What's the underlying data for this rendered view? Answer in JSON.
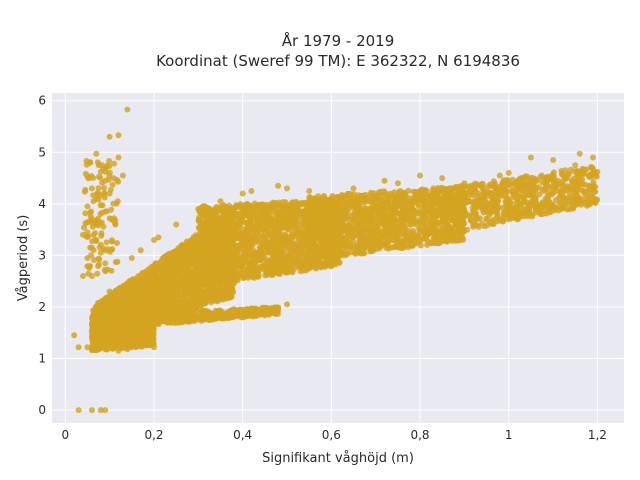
{
  "chart_data": {
    "type": "scatter",
    "title_line1": "År 1979 - 2019",
    "title_line2": "Koordinat (Sweref 99 TM): E 362322, N 6194836",
    "xlabel": "Signifikant våghöjd (m)",
    "ylabel": "Vågperiod (s)",
    "xlim": [
      -0.03,
      1.26
    ],
    "ylim": [
      -0.25,
      6.15
    ],
    "x_ticks": [
      0,
      0.2,
      0.4,
      0.6,
      0.8,
      1,
      1.2
    ],
    "x_tick_labels": [
      "0",
      "0,2",
      "0,4",
      "0,6",
      "0,8",
      "1",
      "1,2"
    ],
    "y_ticks": [
      0,
      1,
      2,
      3,
      4,
      5,
      6
    ],
    "y_tick_labels": [
      "0",
      "1",
      "2",
      "3",
      "4",
      "5",
      "6"
    ],
    "grid": true,
    "legend": "none",
    "marker_color": "#d4a421",
    "background_color": "#e9e9f2",
    "points": [
      [
        0.03,
        0.0
      ],
      [
        0.06,
        0.0
      ],
      [
        0.08,
        0.0
      ],
      [
        0.09,
        0.0
      ],
      [
        0.14,
        5.83
      ],
      [
        0.12,
        5.33
      ],
      [
        0.1,
        5.3
      ],
      [
        0.07,
        4.97
      ],
      [
        0.12,
        4.9
      ],
      [
        0.11,
        4.78
      ],
      [
        0.08,
        4.62
      ],
      [
        0.13,
        4.55
      ],
      [
        0.09,
        4.45
      ],
      [
        0.06,
        4.3
      ],
      [
        0.1,
        4.2
      ],
      [
        0.07,
        4.1
      ],
      [
        0.05,
        3.95
      ],
      [
        0.09,
        3.85
      ],
      [
        0.06,
        3.7
      ],
      [
        0.11,
        3.72
      ],
      [
        0.04,
        3.4
      ],
      [
        0.07,
        3.3
      ],
      [
        0.06,
        3.15
      ],
      [
        0.08,
        3.05
      ],
      [
        0.05,
        2.95
      ],
      [
        0.09,
        2.85
      ],
      [
        0.06,
        2.6
      ],
      [
        0.04,
        2.6
      ],
      [
        0.02,
        1.45
      ],
      [
        0.03,
        1.22
      ],
      [
        0.05,
        1.22
      ],
      [
        0.1,
        2.3
      ],
      [
        0.12,
        2.0
      ],
      [
        0.08,
        1.9
      ],
      [
        1.19,
        4.9
      ],
      [
        1.16,
        4.97
      ],
      [
        1.2,
        4.62
      ],
      [
        1.15,
        4.75
      ],
      [
        1.1,
        4.85
      ],
      [
        1.18,
        4.55
      ],
      [
        1.05,
        4.9
      ],
      [
        1.0,
        4.6
      ],
      [
        0.98,
        4.55
      ],
      [
        0.9,
        4.4
      ],
      [
        0.85,
        4.5
      ],
      [
        0.8,
        4.55
      ],
      [
        0.75,
        4.4
      ],
      [
        0.72,
        4.45
      ],
      [
        0.65,
        4.3
      ],
      [
        0.55,
        4.25
      ],
      [
        0.5,
        4.3
      ],
      [
        0.48,
        4.35
      ],
      [
        0.42,
        4.25
      ],
      [
        0.4,
        4.2
      ],
      [
        0.35,
        4.05
      ],
      [
        0.3,
        3.9
      ],
      [
        0.25,
        3.6
      ],
      [
        0.21,
        3.35
      ],
      [
        0.2,
        3.3
      ],
      [
        0.17,
        3.1
      ],
      [
        0.15,
        2.95
      ],
      [
        0.3,
        3.3
      ],
      [
        0.5,
        2.05
      ],
      [
        0.48,
        1.98
      ],
      [
        0.45,
        1.95
      ],
      [
        0.42,
        1.97
      ],
      [
        0.38,
        1.95
      ],
      [
        0.32,
        1.92
      ],
      [
        0.27,
        1.85
      ],
      [
        0.22,
        1.8
      ],
      [
        0.18,
        1.75
      ],
      [
        0.14,
        1.55
      ],
      [
        0.1,
        1.2
      ],
      [
        0.12,
        1.15
      ],
      [
        0.14,
        1.18
      ],
      [
        0.2,
        1.22
      ],
      [
        0.7,
        3.3
      ],
      [
        0.62,
        3.1
      ],
      [
        0.6,
        2.95
      ],
      [
        0.55,
        2.95
      ],
      [
        0.88,
        3.7
      ],
      [
        0.95,
        3.85
      ],
      [
        1.02,
        4.1
      ],
      [
        1.08,
        4.25
      ],
      [
        1.12,
        4.35
      ],
      [
        0.92,
        3.6
      ],
      [
        0.82,
        3.45
      ],
      [
        0.75,
        3.5
      ]
    ],
    "bands": [
      {
        "x0": 0.06,
        "x1": 0.38,
        "y0_lo": 1.35,
        "y0_hi": 2.0,
        "y1_lo": 2.2,
        "y1_hi": 3.9,
        "n": 2400
      },
      {
        "x0": 0.3,
        "x1": 0.62,
        "y0_lo": 2.4,
        "y0_hi": 3.95,
        "y1_lo": 2.8,
        "y1_hi": 4.1,
        "n": 1700
      },
      {
        "x0": 0.55,
        "x1": 0.9,
        "y0_lo": 2.9,
        "y0_hi": 4.15,
        "y1_lo": 3.3,
        "y1_hi": 4.35,
        "n": 1300
      },
      {
        "x0": 0.85,
        "x1": 1.2,
        "y0_lo": 3.4,
        "y0_hi": 4.3,
        "y1_lo": 4.0,
        "y1_hi": 4.75,
        "n": 700
      },
      {
        "x0": 0.06,
        "x1": 0.2,
        "y0_lo": 1.15,
        "y0_hi": 1.6,
        "y1_lo": 1.25,
        "y1_hi": 1.85,
        "n": 600
      },
      {
        "x0": 0.12,
        "x1": 0.48,
        "y0_lo": 1.6,
        "y0_hi": 1.85,
        "y1_lo": 1.85,
        "y1_hi": 2.0,
        "n": 500
      },
      {
        "x0": 0.04,
        "x1": 0.12,
        "y0_lo": 2.6,
        "y0_hi": 4.9,
        "y1_lo": 2.6,
        "y1_hi": 4.9,
        "n": 120
      }
    ]
  }
}
